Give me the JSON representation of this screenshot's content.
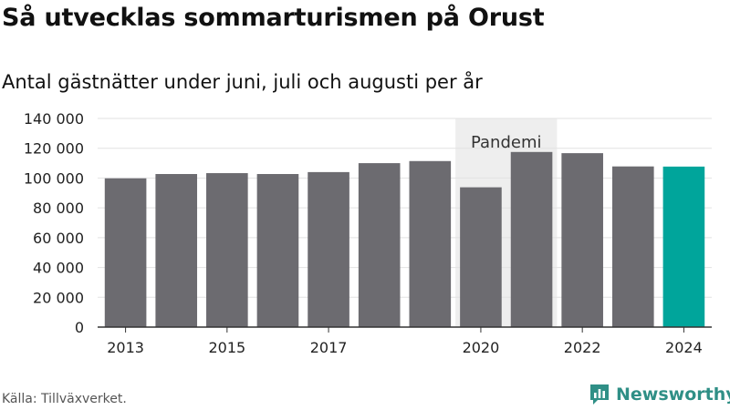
{
  "title": "Så utvecklas sommarturismen på Orust",
  "subtitle": "Antal gästnätter under juni, juli och augusti per år",
  "source": "Källa: Tillväxverket.",
  "brand": {
    "name": "Newsworthy",
    "icon": "newsworthy-logo-icon",
    "color": "#2f8f86"
  },
  "colors": {
    "bar": "#6c6b70",
    "highlight": "#00a59b",
    "band": "#eeeeee",
    "grid": "#e2e2e2"
  },
  "chart_data": {
    "type": "bar",
    "categories": [
      "2013",
      "2014",
      "2015",
      "2016",
      "2017",
      "2018",
      "2019",
      "2020",
      "2021",
      "2022",
      "2023",
      "2024"
    ],
    "values": [
      99800,
      102700,
      103300,
      102700,
      104000,
      110000,
      111400,
      93800,
      117500,
      116700,
      107800,
      107700
    ],
    "highlight_category": "2024",
    "x_tick_labels": [
      "2013",
      "",
      "2015",
      "",
      "2017",
      "",
      "",
      "2020",
      "",
      "2022",
      "",
      "2024"
    ],
    "y_ticks": [
      "0",
      "20 000",
      "40 000",
      "60 000",
      "80 000",
      "100 000",
      "120 000",
      "140 000"
    ],
    "ylim": [
      0,
      140000
    ],
    "grid": true,
    "annotation": {
      "label": "Pandemi",
      "from": "2019.5",
      "to": "2021.5"
    },
    "xlabel": "",
    "ylabel": ""
  }
}
